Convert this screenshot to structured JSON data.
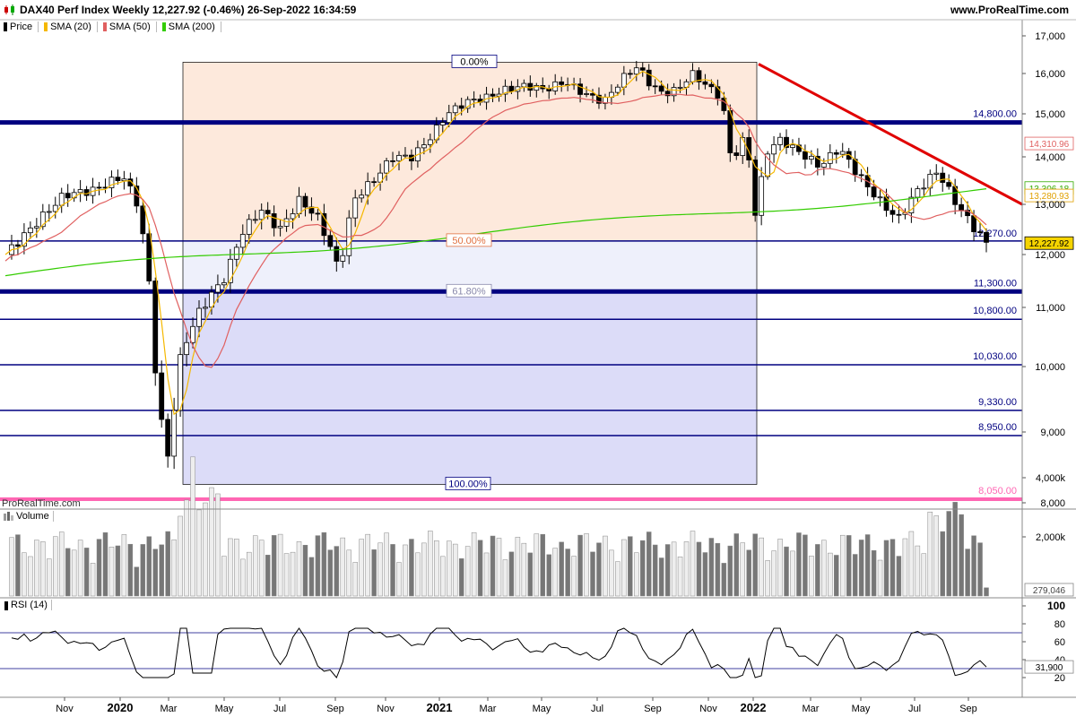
{
  "header": {
    "title": "DAX40 Perf Index Weekly 12,227.92 (-0.46%) 26-Sep-2022 16:34:59",
    "site": "www.ProRealTime.com"
  },
  "legend": [
    {
      "label": "Price",
      "color": "#000000"
    },
    {
      "label": "SMA (20)",
      "color": "#f5b800"
    },
    {
      "label": "SMA (50)",
      "color": "#e06060"
    },
    {
      "label": "SMA (200)",
      "color": "#33cc00"
    }
  ],
  "watermark": "ProRealTime.com",
  "colors": {
    "price_up": "#ffffff",
    "price_down": "#000000",
    "levels": "#000080",
    "trendline": "#e00000",
    "fib_upper": "#fde9dc",
    "fib_lower": "#dcdcf8"
  },
  "chart_data": [
    {
      "type": "candlestick",
      "ylim": [
        8000,
        17300
      ],
      "yticks": [
        "17,000",
        "16,000",
        "15,000",
        "14,000",
        "13,000",
        "12,000",
        "11,000",
        "10,000",
        "9,000",
        "8,000"
      ],
      "xticks": [
        "Nov",
        "2020",
        "Mar",
        "May",
        "Jul",
        "Sep",
        "Nov",
        "2021",
        "Mar",
        "May",
        "Jul",
        "Sep",
        "Nov",
        "2022",
        "Mar",
        "May",
        "Jul",
        "Sep"
      ],
      "horizontal_levels": [
        {
          "label": "14,800.00",
          "value": 14800
        },
        {
          "label": "12,270.00",
          "value": 12270
        },
        {
          "label": "11,300.00",
          "value": 11300
        },
        {
          "label": "10,800.00",
          "value": 10800
        },
        {
          "label": "10,030.00",
          "value": 10030
        },
        {
          "label": "9,330.00",
          "value": 9330
        },
        {
          "label": "8,950.00",
          "value": 8950
        },
        {
          "label": "8,050.00",
          "value": 8050
        }
      ],
      "fibonacci_labels": [
        "0.00%",
        "50.00%",
        "61.80%",
        "100.00%"
      ],
      "price_tags": [
        {
          "label": "14,310.96",
          "value": 14310.96
        },
        {
          "label": "13,306.18",
          "value": 13306.18
        },
        {
          "label": "13,280.93",
          "value": 13280.93
        },
        {
          "label": "12,227.92",
          "value": 12227.92
        }
      ],
      "series_shown": [
        "Price",
        "SMA (20)",
        "SMA (50)",
        "SMA (200)"
      ]
    },
    {
      "type": "bar",
      "name": "Volume",
      "yticks": [
        "4,000k",
        "2,000k"
      ],
      "last_value": "279,046"
    },
    {
      "type": "line",
      "name": "RSI (14)",
      "ylim": [
        0,
        100
      ],
      "yticks": [
        "100",
        "80",
        "60",
        "40",
        "20"
      ],
      "bands": [
        70,
        30
      ],
      "last_value": "31,900"
    }
  ]
}
